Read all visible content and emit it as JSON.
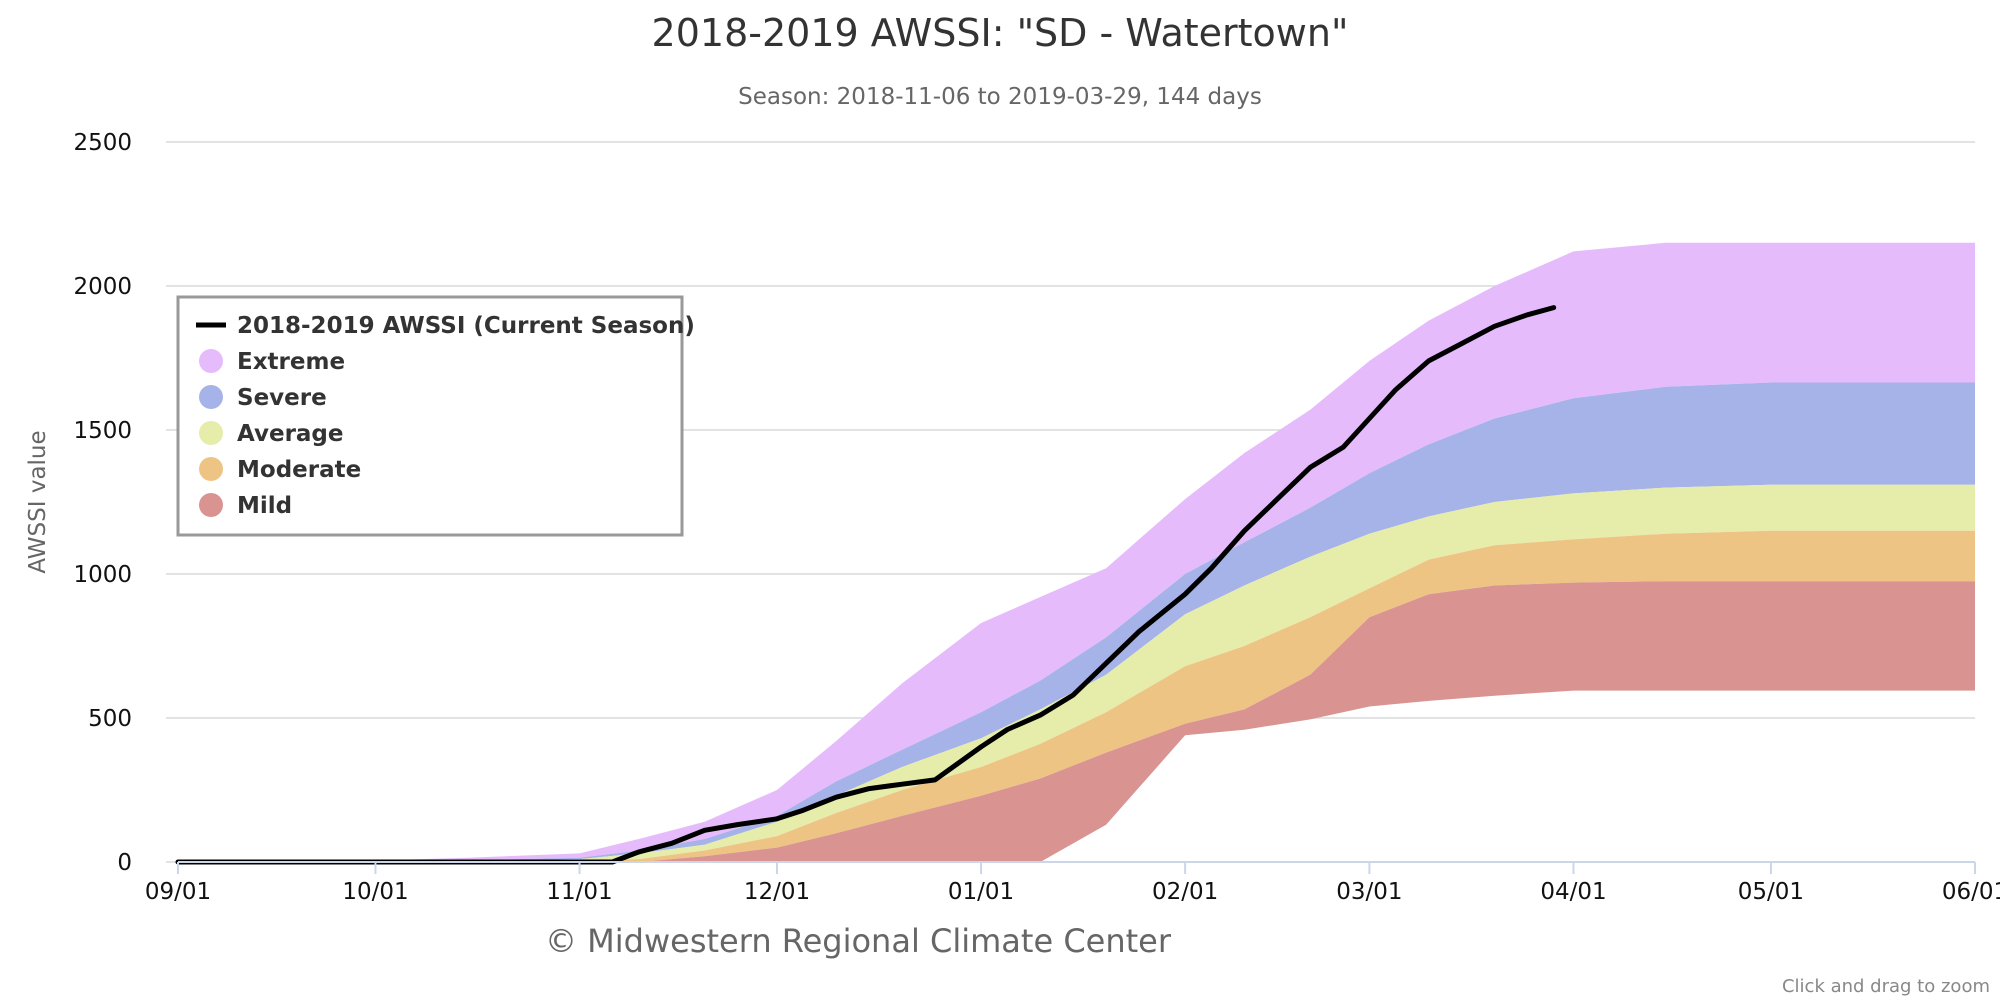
{
  "chart_title": "2018-2019 AWSSI: \"SD - Watertown\"",
  "chart_subtitle": "Season: 2018-11-06 to 2019-03-29, 144 days",
  "credits": "© Midwestern Regional Climate Center",
  "zoom_hint": "Click and drag to zoom",
  "chart_data": {
    "type": "area",
    "title": "2018-2019 AWSSI: \"SD - Watertown\"",
    "subtitle": "Season: 2018-11-06 to 2019-03-29, 144 days",
    "xlabel": "",
    "ylabel": "AWSSI value",
    "xlim": [
      "2018-09-01",
      "2019-06-01"
    ],
    "ylim": [
      0,
      2500
    ],
    "x_ticks": [
      "2018-09-01",
      "2018-10-01",
      "2018-11-01",
      "2018-12-01",
      "2019-01-01",
      "2019-02-01",
      "2019-03-01",
      "2019-04-01",
      "2019-05-01",
      "2019-06-01"
    ],
    "x_tick_labels": [
      "09/01",
      "10/01",
      "11/01",
      "12/01",
      "01/01",
      "02/01",
      "03/01",
      "04/01",
      "05/01",
      "06/01"
    ],
    "y_ticks": [
      0,
      500,
      1000,
      1500,
      2000,
      2500
    ],
    "grid": true,
    "legend_position": "upper-left inside plot",
    "bands_note": "Stacked percentile bands; each band spans between the listed boundary and the next lower boundary",
    "band_boundaries": {
      "x": [
        "2018-09-01",
        "2018-10-01",
        "2018-10-15",
        "2018-11-01",
        "2018-11-10",
        "2018-11-20",
        "2018-12-01",
        "2018-12-10",
        "2018-12-20",
        "2019-01-01",
        "2019-01-10",
        "2019-01-20",
        "2019-02-01",
        "2019-02-10",
        "2019-02-20",
        "2019-03-01",
        "2019-03-10",
        "2019-03-20",
        "2019-04-01",
        "2019-04-15",
        "2019-05-01",
        "2019-05-15",
        "2019-06-01"
      ],
      "extreme_top": [
        0,
        5,
        15,
        30,
        80,
        140,
        250,
        420,
        620,
        830,
        920,
        1020,
        1260,
        1420,
        1570,
        1740,
        1880,
        2000,
        2120,
        2150,
        2150,
        2150,
        2150
      ],
      "severe_top": [
        0,
        2,
        6,
        15,
        40,
        80,
        160,
        280,
        390,
        520,
        630,
        780,
        1000,
        1110,
        1230,
        1350,
        1450,
        1540,
        1610,
        1650,
        1665,
        1665,
        1665
      ],
      "average_top": [
        0,
        0,
        3,
        10,
        30,
        60,
        140,
        230,
        330,
        430,
        530,
        650,
        860,
        960,
        1060,
        1140,
        1200,
        1250,
        1280,
        1300,
        1310,
        1310,
        1310
      ],
      "moderate_top": [
        0,
        0,
        0,
        5,
        10,
        40,
        90,
        170,
        250,
        330,
        410,
        520,
        680,
        750,
        850,
        950,
        1050,
        1100,
        1120,
        1140,
        1150,
        1150,
        1150
      ],
      "mild_top": [
        0,
        0,
        0,
        0,
        0,
        20,
        50,
        100,
        160,
        230,
        290,
        380,
        480,
        530,
        650,
        850,
        930,
        960,
        970,
        975,
        975,
        975,
        975
      ],
      "mild_bottom": [
        0,
        0,
        0,
        0,
        0,
        0,
        0,
        0,
        0,
        0,
        0,
        0,
        0,
        0,
        0,
        0,
        0,
        0,
        0,
        0,
        0,
        0,
        0
      ],
      "mild_bottom_late": {
        "x": [
          "2019-01-01",
          "2019-01-15",
          "2019-02-01",
          "2019-02-15",
          "2019-03-01",
          "2019-03-15",
          "2019-04-01",
          "2019-06-01"
        ],
        "y": [
          0,
          0,
          440,
          470,
          540,
          570,
          595,
          595
        ]
      }
    },
    "series": [
      {
        "name": "2018-2019 AWSSI (Current Season)",
        "color": "#000000",
        "style": "line",
        "x": [
          "2018-09-01",
          "2018-11-06",
          "2018-11-10",
          "2018-11-15",
          "2018-11-20",
          "2018-11-25",
          "2018-12-01",
          "2018-12-05",
          "2018-12-10",
          "2018-12-15",
          "2018-12-20",
          "2018-12-25",
          "2019-01-01",
          "2019-01-05",
          "2019-01-10",
          "2019-01-15",
          "2019-01-20",
          "2019-01-25",
          "2019-02-01",
          "2019-02-05",
          "2019-02-10",
          "2019-02-15",
          "2019-02-20",
          "2019-02-25",
          "2019-03-01",
          "2019-03-05",
          "2019-03-10",
          "2019-03-15",
          "2019-03-20",
          "2019-03-25",
          "2019-03-29"
        ],
        "y": [
          0,
          0,
          35,
          65,
          110,
          130,
          150,
          180,
          225,
          255,
          270,
          285,
          400,
          460,
          510,
          580,
          690,
          800,
          930,
          1020,
          1150,
          1260,
          1370,
          1440,
          1540,
          1640,
          1740,
          1800,
          1860,
          1900,
          1925
        ]
      },
      {
        "name": "Extreme",
        "color": "#e6bbfb",
        "style": "band"
      },
      {
        "name": "Severe",
        "color": "#a6b3e8",
        "style": "band"
      },
      {
        "name": "Average",
        "color": "#e6ecaa",
        "style": "band"
      },
      {
        "name": "Moderate",
        "color": "#eec485",
        "style": "band"
      },
      {
        "name": "Mild",
        "color": "#d99391",
        "style": "band"
      }
    ]
  }
}
